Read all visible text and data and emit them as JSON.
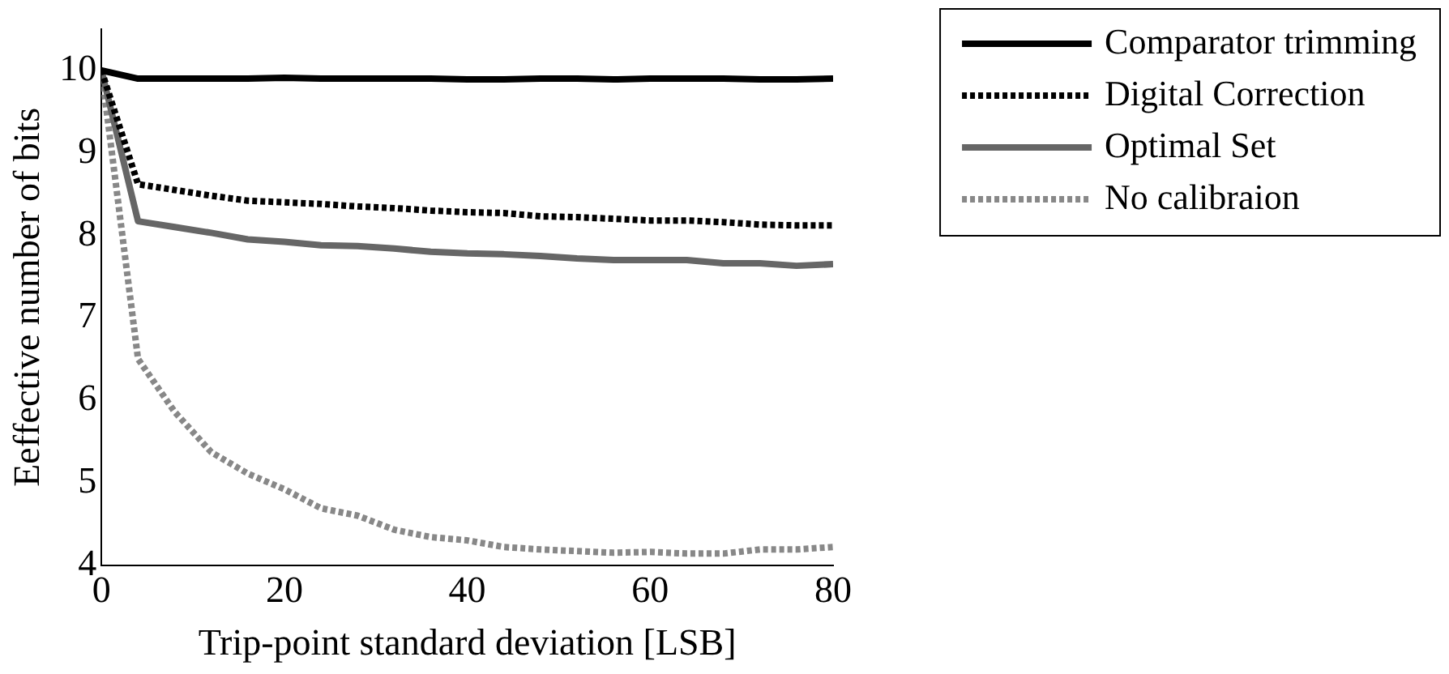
{
  "chart_data": {
    "type": "line",
    "xlabel": "Trip-point standard deviation [LSB]",
    "ylabel": "Eeffective number of bits",
    "x": [
      0,
      4,
      8,
      12,
      16,
      20,
      24,
      28,
      32,
      36,
      40,
      44,
      48,
      52,
      56,
      60,
      64,
      68,
      72,
      76,
      80
    ],
    "series": [
      {
        "name": "Comparator trimming",
        "color": "#000000",
        "line_style": "solid",
        "values": [
          10,
          9.9,
          9.9,
          9.9,
          9.9,
          9.91,
          9.9,
          9.9,
          9.9,
          9.9,
          9.89,
          9.89,
          9.9,
          9.9,
          9.89,
          9.9,
          9.9,
          9.9,
          9.89,
          9.89,
          9.9
        ]
      },
      {
        "name": "Digital Correction",
        "color": "#000000",
        "line_style": "dotted",
        "values": [
          10,
          8.62,
          8.55,
          8.48,
          8.42,
          8.4,
          8.38,
          8.35,
          8.33,
          8.3,
          8.28,
          8.27,
          8.23,
          8.22,
          8.2,
          8.18,
          8.18,
          8.16,
          8.13,
          8.12,
          8.12
        ]
      },
      {
        "name": "Optimal Set",
        "color": "#666666",
        "line_style": "solid",
        "values": [
          10,
          8.17,
          8.1,
          8.03,
          7.95,
          7.92,
          7.88,
          7.87,
          7.84,
          7.8,
          7.78,
          7.77,
          7.75,
          7.72,
          7.7,
          7.7,
          7.7,
          7.66,
          7.66,
          7.63,
          7.65
        ]
      },
      {
        "name": "No calibraion",
        "color": "#888888",
        "line_style": "dotted",
        "values": [
          10,
          6.5,
          5.86,
          5.37,
          5.11,
          4.92,
          4.69,
          4.6,
          4.43,
          4.34,
          4.3,
          4.22,
          4.19,
          4.17,
          4.15,
          4.16,
          4.14,
          4.14,
          4.19,
          4.19,
          4.22
        ]
      }
    ],
    "xlim": [
      0,
      80
    ],
    "xticks": [
      0,
      20,
      40,
      60,
      80
    ],
    "ylim": [
      4,
      10.5
    ],
    "yticks": [
      4,
      5,
      6,
      7,
      8,
      9,
      10
    ],
    "grid": false,
    "legend": "top right",
    "marker": "none"
  }
}
